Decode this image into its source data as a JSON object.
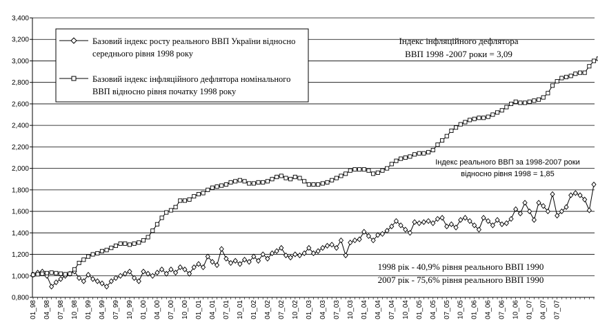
{
  "chart_data": {
    "type": "line",
    "ylim": [
      0.8,
      3.4
    ],
    "yticks": [
      "0,800",
      "1,000",
      "1,200",
      "1,400",
      "1,600",
      "1,800",
      "2,000",
      "2,200",
      "2,400",
      "2,600",
      "2,800",
      "3,000",
      "3,200",
      "3,400"
    ],
    "xticks": [
      "01_98",
      "04_98",
      "07_98",
      "10_98",
      "01_99",
      "04_99",
      "07_99",
      "10_99",
      "01_00",
      "04_00",
      "07_00",
      "10_00",
      "01_01",
      "04_01",
      "07_01",
      "10_01",
      "01_02",
      "04_02",
      "07_02",
      "10_02",
      "01_03",
      "04_03",
      "07_03",
      "10_03",
      "01_04",
      "04_04",
      "07_04",
      "10_04",
      "01_05",
      "04_05",
      "07_05",
      "10_05",
      "01_06",
      "04_06",
      "07_06",
      "10_06",
      "01_07",
      "04_07",
      "07_07"
    ],
    "grid": true,
    "legend_position": "top-left",
    "series": [
      {
        "name": "Базовий індекс росту реального ВВП України відносно середнього рівня 1998 року",
        "marker": "diamond",
        "values": [
          1.01,
          1.03,
          1.04,
          1.0,
          0.9,
          0.94,
          0.97,
          1.0,
          1.02,
          1.04,
          0.98,
          0.95,
          1.01,
          0.97,
          0.95,
          0.93,
          0.9,
          0.95,
          0.98,
          1.0,
          1.02,
          1.04,
          0.98,
          0.95,
          1.04,
          1.02,
          1.0,
          1.03,
          1.06,
          1.02,
          1.06,
          1.03,
          1.08,
          1.06,
          1.02,
          1.08,
          1.11,
          1.08,
          1.18,
          1.13,
          1.1,
          1.25,
          1.16,
          1.12,
          1.14,
          1.11,
          1.15,
          1.13,
          1.18,
          1.14,
          1.2,
          1.16,
          1.21,
          1.23,
          1.26,
          1.19,
          1.17,
          1.2,
          1.19,
          1.21,
          1.26,
          1.21,
          1.23,
          1.26,
          1.28,
          1.29,
          1.26,
          1.33,
          1.19,
          1.31,
          1.33,
          1.34,
          1.41,
          1.37,
          1.33,
          1.38,
          1.39,
          1.42,
          1.46,
          1.51,
          1.47,
          1.43,
          1.4,
          1.5,
          1.49,
          1.5,
          1.51,
          1.49,
          1.53,
          1.54,
          1.46,
          1.48,
          1.45,
          1.52,
          1.54,
          1.51,
          1.47,
          1.43,
          1.54,
          1.51,
          1.47,
          1.52,
          1.48,
          1.49,
          1.53,
          1.62,
          1.58,
          1.68,
          1.6,
          1.52,
          1.68,
          1.65,
          1.6,
          1.76,
          1.56,
          1.6,
          1.64,
          1.75,
          1.77,
          1.75,
          1.71,
          1.61,
          1.85
        ]
      },
      {
        "name": "Базовий індекс інфляційного дефлятора номінального ВВП відносно рівня початку 1998 року",
        "marker": "square",
        "values": [
          1.01,
          1.015,
          1.02,
          1.025,
          1.03,
          1.025,
          1.02,
          1.015,
          1.02,
          1.06,
          1.12,
          1.15,
          1.18,
          1.2,
          1.21,
          1.23,
          1.24,
          1.26,
          1.28,
          1.3,
          1.3,
          1.29,
          1.3,
          1.31,
          1.33,
          1.36,
          1.42,
          1.48,
          1.54,
          1.59,
          1.61,
          1.64,
          1.7,
          1.7,
          1.71,
          1.74,
          1.76,
          1.77,
          1.8,
          1.82,
          1.83,
          1.84,
          1.85,
          1.87,
          1.88,
          1.89,
          1.88,
          1.86,
          1.86,
          1.87,
          1.87,
          1.88,
          1.9,
          1.92,
          1.93,
          1.91,
          1.9,
          1.92,
          1.91,
          1.88,
          1.85,
          1.85,
          1.85,
          1.86,
          1.87,
          1.89,
          1.91,
          1.93,
          1.95,
          1.98,
          1.99,
          1.99,
          1.99,
          1.98,
          1.95,
          1.96,
          1.98,
          2.0,
          2.04,
          2.07,
          2.09,
          2.1,
          2.11,
          2.13,
          2.14,
          2.14,
          2.15,
          2.17,
          2.22,
          2.26,
          2.3,
          2.35,
          2.38,
          2.41,
          2.43,
          2.45,
          2.46,
          2.47,
          2.47,
          2.48,
          2.5,
          2.52,
          2.54,
          2.57,
          2.6,
          2.62,
          2.61,
          2.61,
          2.62,
          2.63,
          2.64,
          2.66,
          2.7,
          2.77,
          2.81,
          2.84,
          2.85,
          2.86,
          2.88,
          2.89,
          2.89,
          2.95,
          3.0,
          3.02,
          3.09
        ]
      }
    ],
    "annotations": {
      "deflator_line1": "Індекс інфляційного дефлятора",
      "deflator_line2": "ВВП 1998 -2007 роки = 3,09",
      "gdp_line1": "Індекс реального ВВП за 1998-2007 роки",
      "gdp_line2": "відносно рівня 1998 = 1,85",
      "year1998": "1998 рік - 40,9% рівня реального ВВП 1990",
      "year2007": "2007 рік - 75,6% рівня реального ВВП 1990"
    },
    "legend": {
      "gdp_line1": "Базовий індекс росту реального ВВП України відносно",
      "gdp_line2": "середнього рівня 1998 року",
      "defl_line1": "Базовий індекс інфляційного дефлятора номінального",
      "defl_line2": "ВВП відносно рівня початку 1998 року"
    }
  }
}
